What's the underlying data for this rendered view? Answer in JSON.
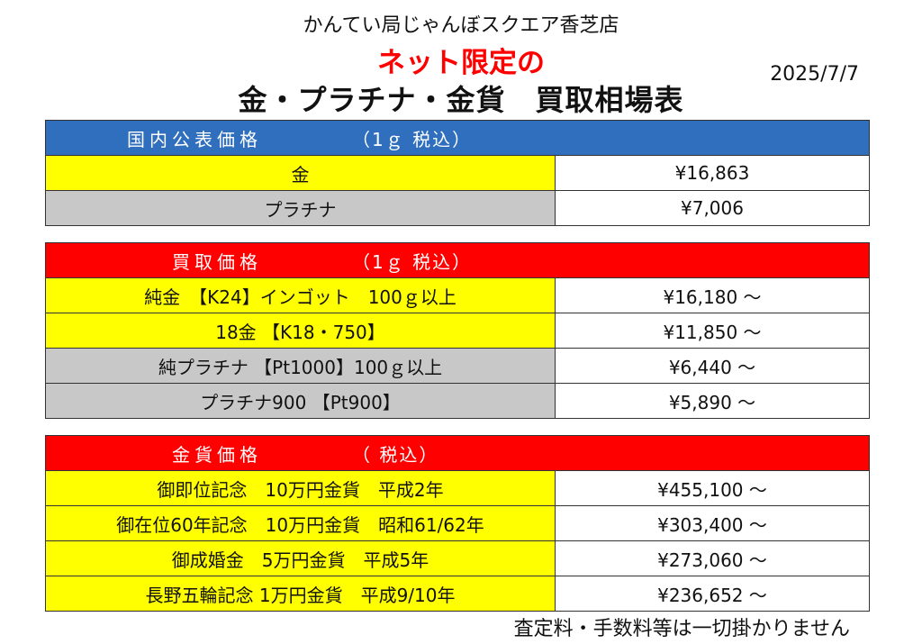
{
  "header": {
    "store_name": "かんてい局じゃんぼスクエア香芝店",
    "subtitle": "ネット限定の",
    "title": "金・プラチナ・金貨　買取相場表",
    "date": "2025/7/7"
  },
  "domestic": {
    "header_label": "国内公表価格",
    "header_note": "（1ｇ 税込）",
    "rows": [
      {
        "name": "金",
        "price": "¥16,863"
      },
      {
        "name": "プラチナ",
        "price": "¥7,006"
      }
    ]
  },
  "buy": {
    "header_label": "買取価格",
    "header_note": "（1ｇ 税込）",
    "rows": [
      {
        "name": "純金　【K24】インゴット　100ｇ以上",
        "price": "¥16,180 ～"
      },
      {
        "name": "18金 【K18・750】",
        "price": "¥11,850 ～"
      },
      {
        "name": "純プラチナ 【Pt1000】100ｇ以上",
        "price": "¥6,440 ～"
      },
      {
        "name": "プラチナ900 【Pt900】",
        "price": "¥5,890 ～"
      }
    ]
  },
  "coins": {
    "header_label": "金貨価格",
    "header_note": "（ 税込）",
    "rows": [
      {
        "name": "御即位記念　10万円金貨　平成2年",
        "price": "¥455,100 ～"
      },
      {
        "name": "御在位60年記念　10万円金貨　昭和61/62年",
        "price": "¥303,400 ～"
      },
      {
        "name": "御成婚金　5万円金貨　平成5年",
        "price": "¥273,060 ～"
      },
      {
        "name": "長野五輪記念 1万円金貨　平成9/10年",
        "price": "¥236,652 ～"
      }
    ]
  },
  "footer": {
    "note": "査定料・手数料等は一切掛かりません"
  },
  "colors": {
    "header_blue": "#2f6fbd",
    "header_red": "#ff0000",
    "gold_cell": "#ffff00",
    "platinum_cell": "#c8c8c8",
    "subtitle_red": "#ff0000"
  }
}
